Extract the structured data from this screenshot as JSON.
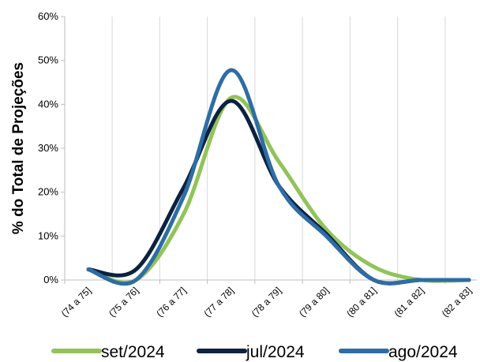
{
  "chart_data": {
    "type": "line",
    "ylabel": "% do Total de Projeções",
    "ylim": [
      0,
      60
    ],
    "y_ticks": [
      "0%",
      "10%",
      "20%",
      "30%",
      "40%",
      "50%",
      "60%"
    ],
    "categories": [
      "(74 a 75]",
      "(75 a 76]",
      "(76 a 77]",
      "(77 a 78]",
      "(78 a 79]",
      "(79 a 80]",
      "(80 a 81]",
      "(81 a 82]",
      "(82 a 83]"
    ],
    "grid": "vertical",
    "legend_position": "bottom",
    "series": [
      {
        "name": "set/2024",
        "color": "#92c35a",
        "values": [
          2.4,
          0,
          15.0,
          41.5,
          27.0,
          11.5,
          3.0,
          0,
          0
        ]
      },
      {
        "name": "jul/2024",
        "color": "#0b2240",
        "values": [
          2.4,
          2.4,
          21.0,
          40.8,
          21.5,
          10.5,
          0,
          0,
          0
        ]
      },
      {
        "name": "ago/2024",
        "color": "#2e6da4",
        "values": [
          2.4,
          0,
          19.0,
          47.8,
          21.5,
          10.0,
          0,
          0,
          0
        ]
      }
    ]
  }
}
